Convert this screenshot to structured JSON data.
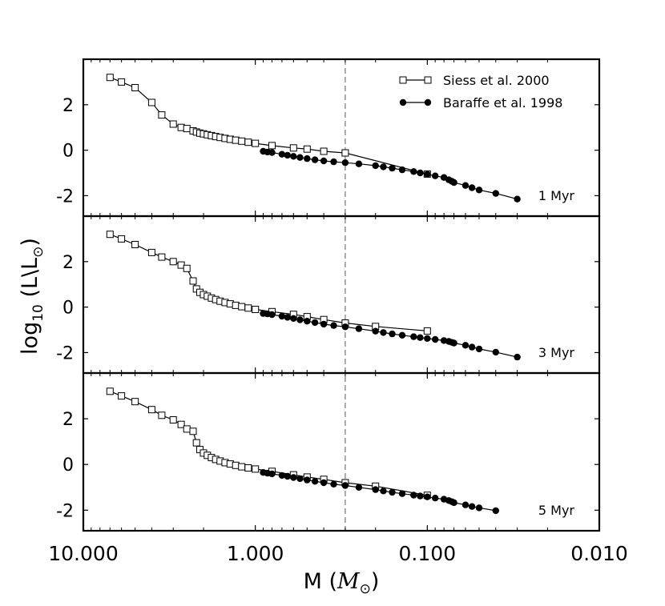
{
  "chart_data": {
    "type": "line",
    "x_scale": "log",
    "x_reversed": true,
    "xlim": [
      10,
      0.01
    ],
    "ylim": [
      -2.9,
      4.0
    ],
    "x_ticks": [
      10,
      1,
      0.1,
      0.01
    ],
    "x_tick_labels": [
      "10.000",
      "1.000",
      "0.100",
      "0.010"
    ],
    "y_ticks": [
      2,
      0,
      -2
    ],
    "y_tick_labels": [
      "2",
      "0",
      "-2"
    ],
    "xlabel_main": "M",
    "xlabel_unit": "M",
    "ylabel_main": "log",
    "ylabel_sub": "10",
    "ylabel_unit": "(L\\L",
    "vline_x": 0.3,
    "legend_position": "top-right",
    "legend": [
      {
        "label": "Siess et al. 2000",
        "marker": "open-square"
      },
      {
        "label": "Baraffe et al. 1998",
        "marker": "filled-circle"
      }
    ],
    "panels": [
      {
        "label": "1 Myr",
        "series": [
          {
            "name": "Siess et al. 2000",
            "x": [
              7.0,
              6.0,
              5.0,
              4.0,
              3.5,
              3.0,
              2.7,
              2.5,
              2.3,
              2.2,
              2.1,
              2.0,
              1.9,
              1.8,
              1.7,
              1.6,
              1.5,
              1.4,
              1.3,
              1.2,
              1.1,
              1.0,
              0.8,
              0.6,
              0.5,
              0.4,
              0.3,
              0.1
            ],
            "y": [
              3.2,
              3.0,
              2.75,
              2.1,
              1.55,
              1.15,
              1.0,
              0.95,
              0.85,
              0.8,
              0.75,
              0.72,
              0.68,
              0.64,
              0.6,
              0.56,
              0.52,
              0.48,
              0.44,
              0.4,
              0.35,
              0.3,
              0.2,
              0.1,
              0.05,
              -0.05,
              -0.12,
              -1.05
            ]
          },
          {
            "name": "Baraffe et al. 1998",
            "x": [
              0.9,
              0.85,
              0.8,
              0.7,
              0.65,
              0.6,
              0.55,
              0.5,
              0.45,
              0.4,
              0.35,
              0.3,
              0.25,
              0.2,
              0.18,
              0.16,
              0.14,
              0.12,
              0.11,
              0.1,
              0.09,
              0.08,
              0.075,
              0.072,
              0.07,
              0.06,
              0.055,
              0.05,
              0.04,
              0.03
            ],
            "y": [
              -0.05,
              -0.08,
              -0.1,
              -0.18,
              -0.22,
              -0.27,
              -0.32,
              -0.37,
              -0.42,
              -0.47,
              -0.51,
              -0.55,
              -0.6,
              -0.68,
              -0.73,
              -0.79,
              -0.86,
              -0.94,
              -1.0,
              -1.06,
              -1.13,
              -1.2,
              -1.3,
              -1.37,
              -1.42,
              -1.55,
              -1.65,
              -1.75,
              -1.9,
              -2.15
            ]
          }
        ]
      },
      {
        "label": "3 Myr",
        "series": [
          {
            "name": "Siess et al. 2000",
            "x": [
              7.0,
              6.0,
              5.0,
              4.0,
              3.5,
              3.0,
              2.7,
              2.5,
              2.3,
              2.2,
              2.1,
              2.0,
              1.9,
              1.8,
              1.7,
              1.6,
              1.5,
              1.4,
              1.3,
              1.2,
              1.1,
              1.0,
              0.8,
              0.6,
              0.5,
              0.4,
              0.3,
              0.2,
              0.1
            ],
            "y": [
              3.2,
              3.0,
              2.75,
              2.4,
              2.2,
              2.0,
              1.85,
              1.7,
              1.15,
              0.8,
              0.65,
              0.55,
              0.48,
              0.4,
              0.33,
              0.26,
              0.2,
              0.14,
              0.08,
              0.02,
              -0.04,
              -0.1,
              -0.2,
              -0.32,
              -0.42,
              -0.55,
              -0.7,
              -0.85,
              -1.05
            ]
          },
          {
            "name": "Baraffe et al. 1998",
            "x": [
              0.9,
              0.85,
              0.8,
              0.7,
              0.65,
              0.6,
              0.55,
              0.5,
              0.45,
              0.4,
              0.35,
              0.3,
              0.25,
              0.2,
              0.18,
              0.16,
              0.14,
              0.12,
              0.11,
              0.1,
              0.09,
              0.08,
              0.075,
              0.072,
              0.07,
              0.06,
              0.055,
              0.05,
              0.04,
              0.03
            ],
            "y": [
              -0.28,
              -0.3,
              -0.33,
              -0.4,
              -0.45,
              -0.5,
              -0.56,
              -0.62,
              -0.68,
              -0.75,
              -0.81,
              -0.87,
              -0.95,
              -1.06,
              -1.12,
              -1.18,
              -1.24,
              -1.3,
              -1.34,
              -1.38,
              -1.42,
              -1.47,
              -1.51,
              -1.55,
              -1.58,
              -1.68,
              -1.76,
              -1.84,
              -1.98,
              -2.2
            ]
          }
        ]
      },
      {
        "label": "5 Myr",
        "series": [
          {
            "name": "Siess et al. 2000",
            "x": [
              7.0,
              6.0,
              5.0,
              4.0,
              3.5,
              3.0,
              2.7,
              2.5,
              2.3,
              2.2,
              2.1,
              2.0,
              1.9,
              1.8,
              1.7,
              1.6,
              1.5,
              1.4,
              1.3,
              1.2,
              1.1,
              1.0,
              0.8,
              0.6,
              0.5,
              0.4,
              0.3,
              0.2,
              0.1
            ],
            "y": [
              3.2,
              3.0,
              2.75,
              2.4,
              2.15,
              1.95,
              1.75,
              1.55,
              1.45,
              0.95,
              0.65,
              0.5,
              0.4,
              0.3,
              0.22,
              0.15,
              0.08,
              0.02,
              -0.04,
              -0.1,
              -0.15,
              -0.2,
              -0.3,
              -0.45,
              -0.55,
              -0.65,
              -0.8,
              -0.95,
              -1.35
            ]
          },
          {
            "name": "Baraffe et al. 1998",
            "x": [
              0.9,
              0.85,
              0.8,
              0.7,
              0.65,
              0.6,
              0.55,
              0.5,
              0.45,
              0.4,
              0.35,
              0.3,
              0.25,
              0.2,
              0.18,
              0.16,
              0.14,
              0.12,
              0.11,
              0.1,
              0.09,
              0.08,
              0.075,
              0.072,
              0.07,
              0.06,
              0.055,
              0.05,
              0.04
            ],
            "y": [
              -0.35,
              -0.38,
              -0.41,
              -0.48,
              -0.52,
              -0.57,
              -0.62,
              -0.68,
              -0.74,
              -0.8,
              -0.86,
              -0.92,
              -1.0,
              -1.1,
              -1.16,
              -1.22,
              -1.28,
              -1.34,
              -1.38,
              -1.42,
              -1.47,
              -1.52,
              -1.58,
              -1.63,
              -1.67,
              -1.77,
              -1.84,
              -1.9,
              -2.02
            ]
          }
        ]
      }
    ]
  }
}
